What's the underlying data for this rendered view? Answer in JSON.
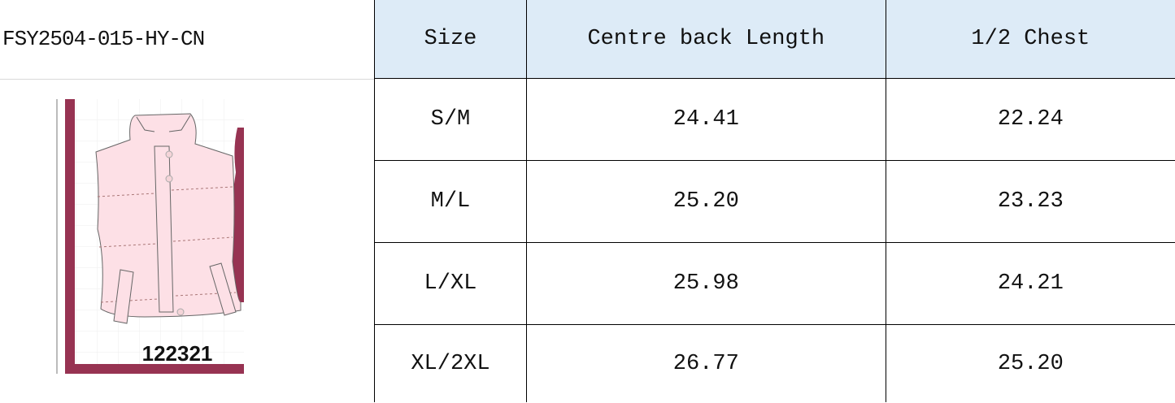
{
  "style_code": "FSY2504-015-HY-CN",
  "product_image": {
    "label": "122321",
    "colors": {
      "garment": "#fde0e6",
      "frame": "#973352"
    }
  },
  "table": {
    "header_bg": "#ddebf7",
    "headers": [
      "Size",
      "Centre back Length",
      "1/2 Chest"
    ],
    "rows": [
      [
        "S/M",
        "24.41",
        "22.24"
      ],
      [
        "M/L",
        "25.20",
        "23.23"
      ],
      [
        "L/XL",
        "25.98",
        "24.21"
      ],
      [
        "XL/2XL",
        "26.77",
        "25.20"
      ]
    ]
  }
}
